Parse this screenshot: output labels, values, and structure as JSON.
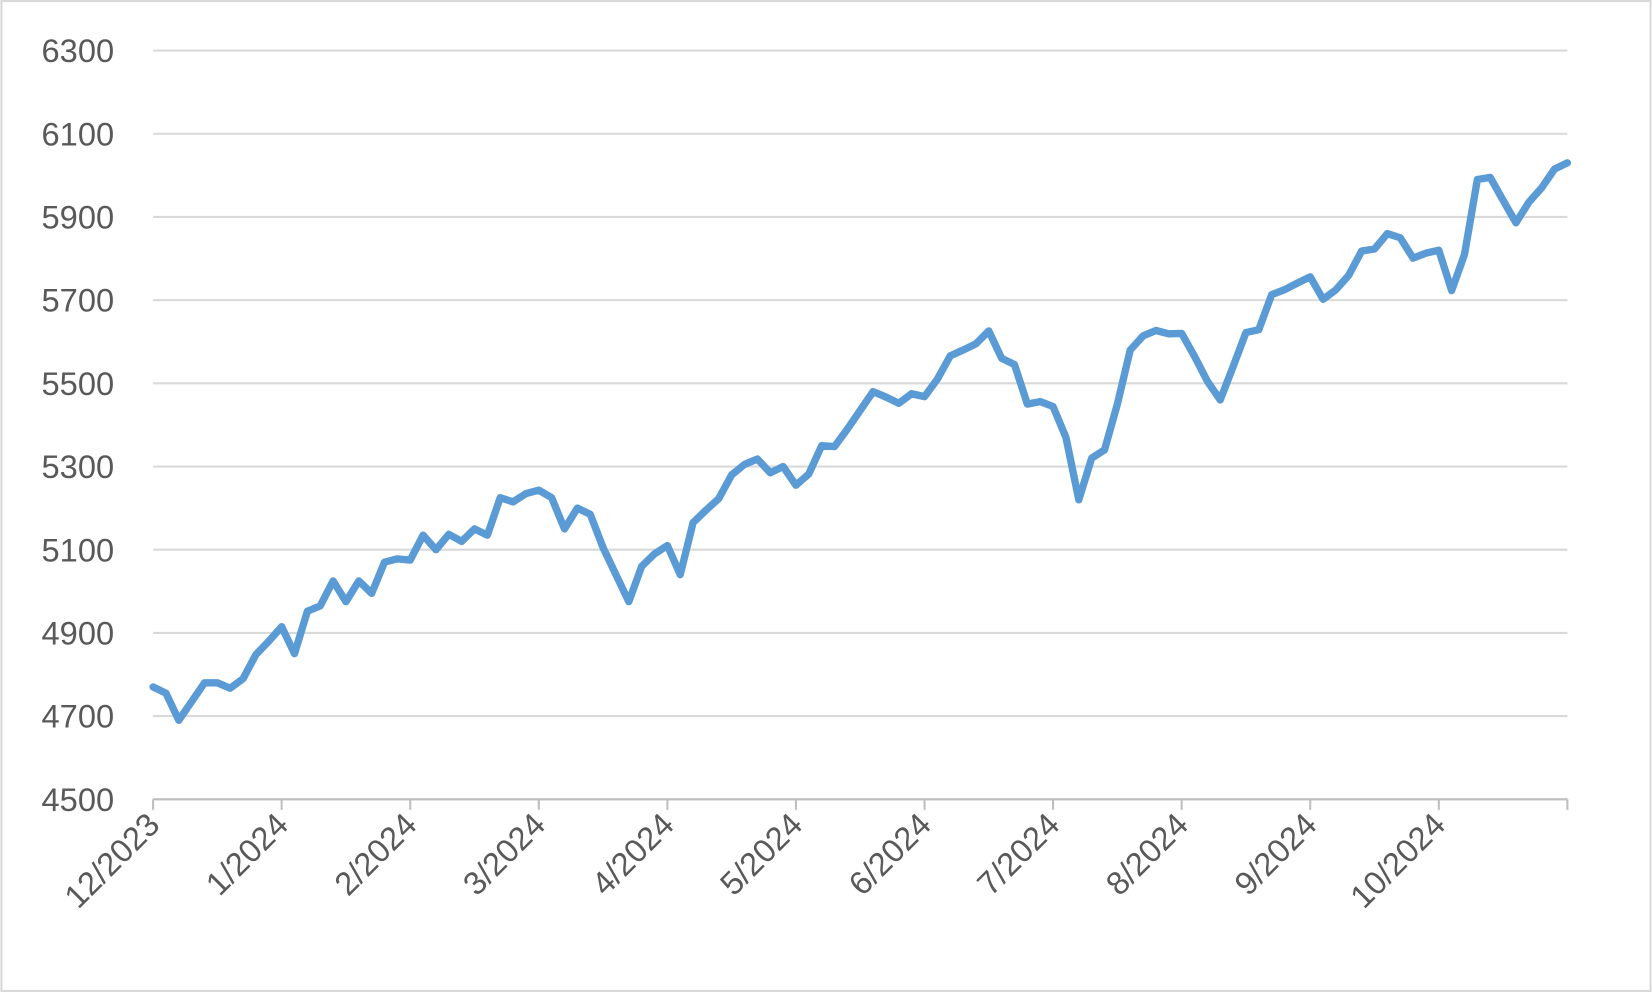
{
  "chart_data": {
    "type": "line",
    "color": "#5b9bd5",
    "grid": true,
    "ylim": [
      4500,
      6300
    ],
    "yticks": [
      4500,
      4700,
      4900,
      5100,
      5300,
      5500,
      5700,
      5900,
      6100,
      6300
    ],
    "categories": [
      "12/2023",
      null,
      null,
      null,
      null,
      null,
      null,
      null,
      null,
      null,
      "1/2024",
      null,
      null,
      null,
      null,
      null,
      null,
      null,
      null,
      null,
      "2/2024",
      null,
      null,
      null,
      null,
      null,
      null,
      null,
      null,
      null,
      "3/2024",
      null,
      null,
      null,
      null,
      null,
      null,
      null,
      null,
      null,
      "4/2024",
      null,
      null,
      null,
      null,
      null,
      null,
      null,
      null,
      null,
      "5/2024",
      null,
      null,
      null,
      null,
      null,
      null,
      null,
      null,
      null,
      "6/2024",
      null,
      null,
      null,
      null,
      null,
      null,
      null,
      null,
      null,
      "7/2024",
      null,
      null,
      null,
      null,
      null,
      null,
      null,
      null,
      null,
      "8/2024",
      null,
      null,
      null,
      null,
      null,
      null,
      null,
      null,
      null,
      "9/2024",
      null,
      null,
      null,
      null,
      null,
      null,
      null,
      null,
      null,
      "10/2024",
      null,
      null,
      null,
      null,
      null,
      null,
      null,
      null,
      null,
      null
    ],
    "values": [
      4770,
      4755,
      4690,
      4735,
      4780,
      4780,
      4767,
      4790,
      4848,
      4880,
      4915,
      4850,
      4952,
      4965,
      5025,
      4975,
      5025,
      4995,
      5070,
      5078,
      5075,
      5135,
      5100,
      5137,
      5120,
      5150,
      5135,
      5225,
      5215,
      5235,
      5243,
      5225,
      5150,
      5200,
      5185,
      5105,
      5040,
      4975,
      5060,
      5090,
      5110,
      5040,
      5165,
      5195,
      5223,
      5280,
      5305,
      5318,
      5285,
      5300,
      5255,
      5282,
      5350,
      5348,
      5390,
      5435,
      5480,
      5467,
      5452,
      5475,
      5468,
      5510,
      5566,
      5580,
      5595,
      5626,
      5560,
      5545,
      5450,
      5456,
      5444,
      5370,
      5220,
      5320,
      5340,
      5450,
      5580,
      5614,
      5627,
      5619,
      5620,
      5565,
      5505,
      5460,
      5540,
      5622,
      5629,
      5713,
      5725,
      5741,
      5756,
      5702,
      5725,
      5760,
      5818,
      5823,
      5860,
      5850,
      5801,
      5813,
      5820,
      5723,
      5810,
      5990,
      5995,
      5940,
      5886,
      5935,
      5970,
      6015,
      6030
    ]
  }
}
